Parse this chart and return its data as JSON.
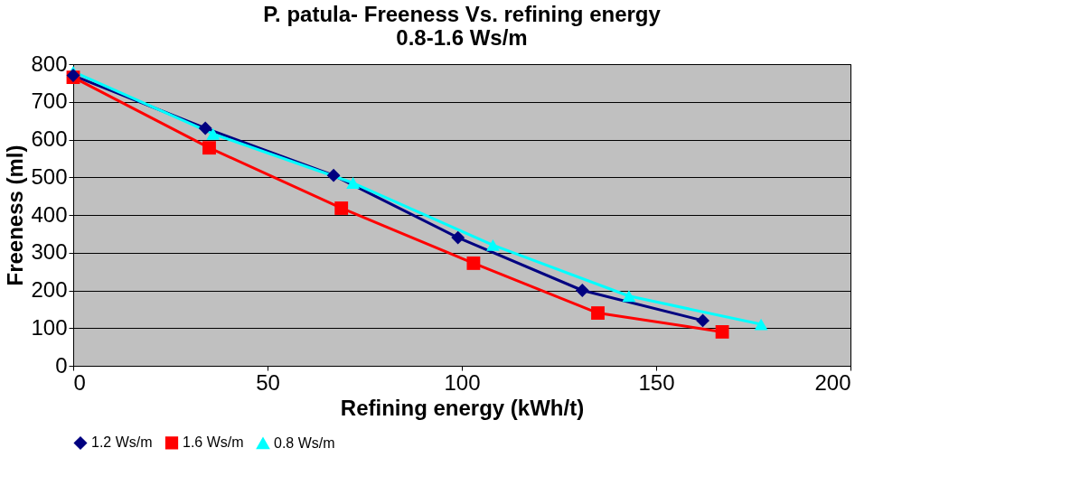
{
  "chart_data": {
    "type": "line",
    "title": [
      "P. patula- Freeness Vs. refining energy",
      "0.8-1.6 Ws/m"
    ],
    "xlabel": "Refining energy (kWh/t)",
    "ylabel": "Freeness (ml)",
    "xlim": [
      0,
      200
    ],
    "xticks": [
      0,
      50,
      100,
      150,
      200
    ],
    "ylim": [
      0,
      800
    ],
    "yticks": [
      0,
      100,
      200,
      300,
      400,
      500,
      600,
      700,
      800
    ],
    "grid": "y",
    "legend": "bottom",
    "series": [
      {
        "name": "1.2 Ws/m",
        "color": "#000080",
        "marker": "diamond",
        "x": [
          0,
          34,
          67,
          99,
          131,
          162
        ],
        "values": [
          770,
          630,
          505,
          340,
          200,
          120
        ]
      },
      {
        "name": "1.6 Ws/m",
        "color": "#ff0000",
        "marker": "square",
        "x": [
          0,
          35,
          69,
          103,
          135,
          167
        ],
        "values": [
          765,
          578,
          418,
          272,
          140,
          90
        ]
      },
      {
        "name": "0.8 Ws/m",
        "color": "#00ffff",
        "marker": "triangle",
        "x": [
          0,
          36,
          72,
          108,
          143,
          177
        ],
        "values": [
          780,
          615,
          485,
          320,
          185,
          110
        ]
      }
    ]
  }
}
